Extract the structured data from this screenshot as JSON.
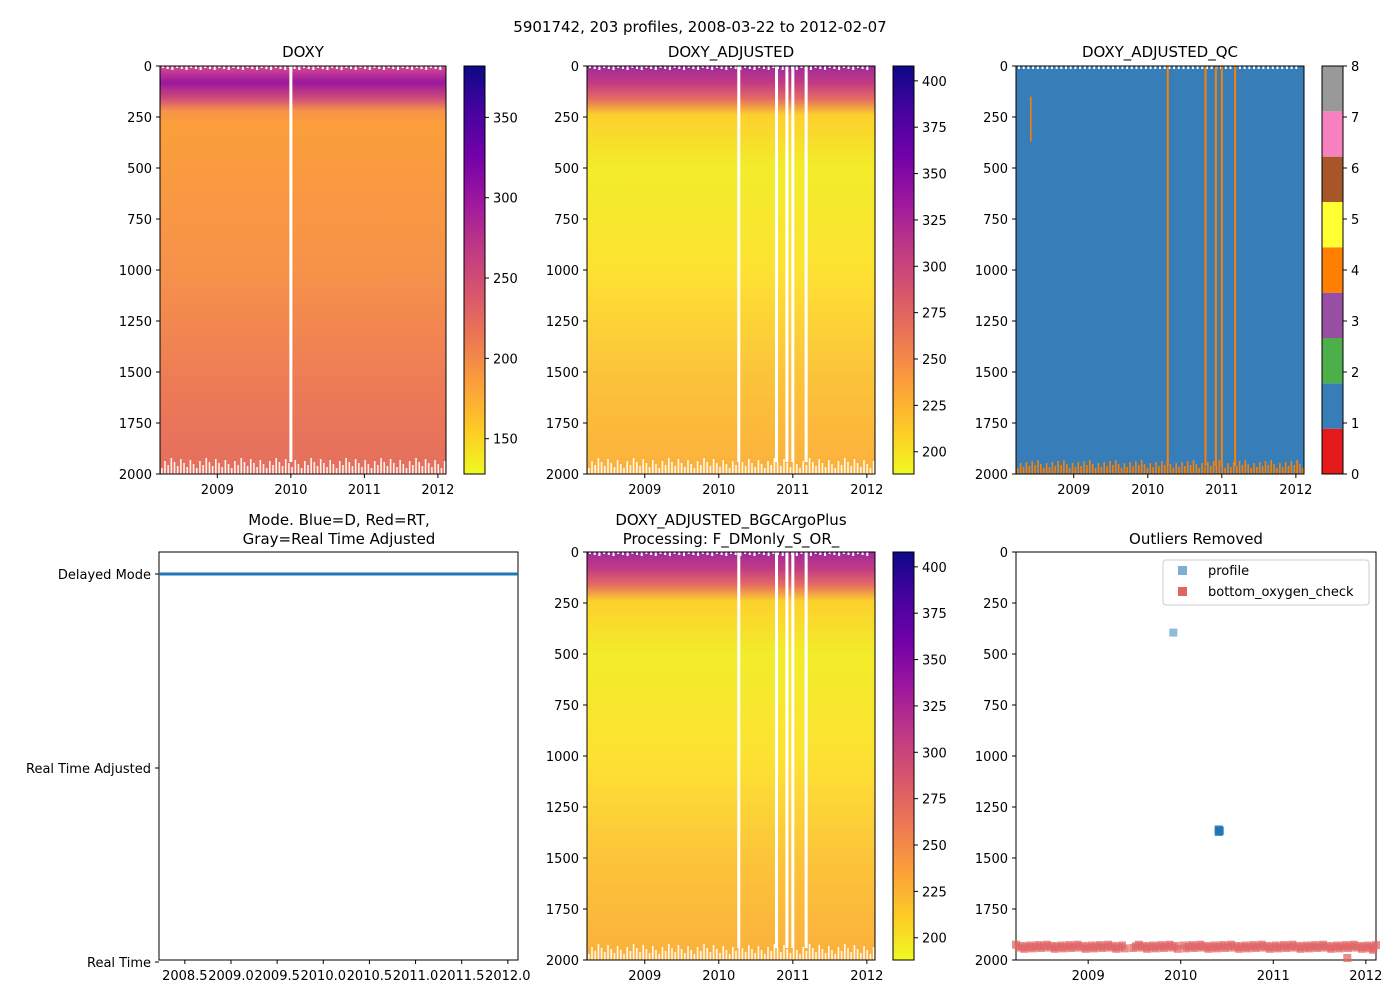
{
  "suptitle": "5901742, 203 profiles, 2008-03-22 to 2012-02-07",
  "colors": {
    "plasma": [
      "#f0f921",
      "#fdca26",
      "#fb9f3a",
      "#ed7953",
      "#d8576b",
      "#bd3786",
      "#9c179e",
      "#7201a8",
      "#46039f",
      "#0d0887"
    ],
    "qc": [
      "#e41a1c",
      "#377eb8",
      "#4daf4a",
      "#984ea3",
      "#ff7f00",
      "#ffff33",
      "#a65628",
      "#f781bf",
      "#999999"
    ],
    "mode_line": "#1f77b4",
    "profile_marker": "#7bafd4",
    "profile_cluster": "#1f77b4",
    "bottom_marker": "#e06666",
    "axis": "#000000"
  },
  "chart_data": [
    {
      "id": "doxy",
      "type": "heatmap",
      "title": "DOXY",
      "x_ticks": [
        "2009",
        "2010",
        "2011",
        "2012"
      ],
      "x_tick_values": [
        2009,
        2010,
        2011,
        2012
      ],
      "xlim": [
        2008.22,
        2012.11
      ],
      "y_ticks": [
        "0",
        "250",
        "500",
        "750",
        "1000",
        "1250",
        "1500",
        "1750",
        "2000"
      ],
      "y_tick_values": [
        0,
        250,
        500,
        750,
        1000,
        1250,
        1500,
        1750,
        2000
      ],
      "ylim": [
        2000,
        0
      ],
      "colorbar": {
        "ticks": [
          "150",
          "200",
          "250",
          "300",
          "350"
        ],
        "tick_values": [
          150,
          200,
          250,
          300,
          350
        ],
        "range": [
          128,
          382
        ]
      },
      "data_gaps_x": [
        2010.0
      ],
      "depth_profile": [
        {
          "depth": 0,
          "value": 290
        },
        {
          "depth": 150,
          "value": 265
        },
        {
          "depth": 250,
          "value": 185
        },
        {
          "depth": 1000,
          "value": 205
        },
        {
          "depth": 2000,
          "value": 230
        }
      ]
    },
    {
      "id": "doxy-adjusted",
      "type": "heatmap",
      "title": "DOXY_ADJUSTED",
      "x_ticks": [
        "2009",
        "2010",
        "2011",
        "2012"
      ],
      "x_tick_values": [
        2009,
        2010,
        2011,
        2012
      ],
      "xlim": [
        2008.22,
        2012.11
      ],
      "y_ticks": [
        "0",
        "250",
        "500",
        "750",
        "1000",
        "1250",
        "1500",
        "1750",
        "2000"
      ],
      "y_tick_values": [
        0,
        250,
        500,
        750,
        1000,
        1250,
        1500,
        1750,
        2000
      ],
      "ylim": [
        2000,
        0
      ],
      "colorbar": {
        "ticks": [
          "200",
          "225",
          "250",
          "275",
          "300",
          "325",
          "350",
          "375",
          "400"
        ],
        "tick_values": [
          200,
          225,
          250,
          275,
          300,
          325,
          350,
          375,
          400
        ],
        "range": [
          188,
          408
        ]
      },
      "data_gaps_x": [
        2010.27,
        2010.78,
        2010.92,
        2011.0,
        2011.18
      ],
      "depth_profile": [
        {
          "depth": 0,
          "value": 320
        },
        {
          "depth": 150,
          "value": 290
        },
        {
          "depth": 250,
          "value": 215
        },
        {
          "depth": 500,
          "value": 200
        },
        {
          "depth": 1000,
          "value": 212
        },
        {
          "depth": 2000,
          "value": 232
        }
      ]
    },
    {
      "id": "doxy-adjusted-qc",
      "type": "heatmap",
      "title": "DOXY_ADJUSTED_QC",
      "x_ticks": [
        "2009",
        "2010",
        "2011",
        "2012"
      ],
      "x_tick_values": [
        2009,
        2010,
        2011,
        2012
      ],
      "xlim": [
        2008.22,
        2012.11
      ],
      "y_ticks": [
        "0",
        "250",
        "500",
        "750",
        "1000",
        "1250",
        "1500",
        "1750",
        "2000"
      ],
      "y_tick_values": [
        0,
        250,
        500,
        750,
        1000,
        1250,
        1500,
        1750,
        2000
      ],
      "ylim": [
        2000,
        0
      ],
      "colorbar": {
        "ticks": [
          "0",
          "1",
          "2",
          "3",
          "4",
          "5",
          "6",
          "7",
          "8"
        ],
        "tick_values": [
          0,
          1,
          2,
          3,
          4,
          5,
          6,
          7,
          8
        ],
        "range": [
          0,
          8
        ]
      },
      "dominant_flag": 1,
      "flag4_profiles_x": [
        2010.27,
        2010.78,
        2010.92,
        2011.0,
        2011.18
      ]
    },
    {
      "id": "mode",
      "type": "line",
      "title": "Mode. Blue=D, Red=RT,\nGray=Real Time Adjusted",
      "x_ticks": [
        "2008.5",
        "2009.0",
        "2009.5",
        "2010.0",
        "2010.5",
        "2011.0",
        "2011.5",
        "2012.0"
      ],
      "x_tick_values": [
        2008.5,
        2009.0,
        2009.5,
        2010.0,
        2010.5,
        2011.0,
        2011.5,
        2012.0
      ],
      "xlim": [
        2008.22,
        2012.11
      ],
      "y_ticks": [
        "Delayed Mode",
        "Real Time Adjusted",
        "Real Time"
      ],
      "series": [
        {
          "name": "D",
          "x": [
            2008.22,
            2012.11
          ],
          "y": [
            "Delayed Mode",
            "Delayed Mode"
          ]
        }
      ]
    },
    {
      "id": "doxy-adjusted-bgc",
      "type": "heatmap",
      "title": "DOXY_ADJUSTED_BGCArgoPlus\nProcessing: F_DMonly_S_OR_",
      "x_ticks": [
        "2009",
        "2010",
        "2011",
        "2012"
      ],
      "x_tick_values": [
        2009,
        2010,
        2011,
        2012
      ],
      "xlim": [
        2008.22,
        2012.11
      ],
      "y_ticks": [
        "0",
        "250",
        "500",
        "750",
        "1000",
        "1250",
        "1500",
        "1750",
        "2000"
      ],
      "y_tick_values": [
        0,
        250,
        500,
        750,
        1000,
        1250,
        1500,
        1750,
        2000
      ],
      "ylim": [
        2000,
        0
      ],
      "colorbar": {
        "ticks": [
          "200",
          "225",
          "250",
          "275",
          "300",
          "325",
          "350",
          "375",
          "400"
        ],
        "tick_values": [
          200,
          225,
          250,
          275,
          300,
          325,
          350,
          375,
          400
        ],
        "range": [
          188,
          408
        ]
      },
      "data_gaps_x": [
        2010.27,
        2010.78,
        2010.92,
        2011.0,
        2011.18
      ],
      "depth_profile": [
        {
          "depth": 0,
          "value": 320
        },
        {
          "depth": 150,
          "value": 290
        },
        {
          "depth": 250,
          "value": 215
        },
        {
          "depth": 500,
          "value": 200
        },
        {
          "depth": 1000,
          "value": 212
        },
        {
          "depth": 2000,
          "value": 232
        }
      ]
    },
    {
      "id": "outliers",
      "type": "scatter",
      "title": "Outliers Removed",
      "x_ticks": [
        "2009",
        "2010",
        "2011",
        "2012"
      ],
      "x_tick_values": [
        2009,
        2010,
        2011,
        2012
      ],
      "xlim": [
        2008.22,
        2012.11
      ],
      "y_ticks": [
        "0",
        "250",
        "500",
        "750",
        "1000",
        "1250",
        "1500",
        "1750",
        "2000"
      ],
      "y_tick_values": [
        0,
        250,
        500,
        750,
        1000,
        1250,
        1500,
        1750,
        2000
      ],
      "ylim": [
        2000,
        0
      ],
      "legend": [
        "profile",
        "bottom_oxygen_check"
      ],
      "legend_position": "top-right",
      "series": [
        {
          "name": "profile",
          "points": [
            {
              "x": 2009.92,
              "y": 395
            },
            {
              "x": 2010.41,
              "y": 1360
            },
            {
              "x": 2010.42,
              "y": 1365
            },
            {
              "x": 2010.41,
              "y": 1372
            },
            {
              "x": 2010.42,
              "y": 1368
            }
          ]
        },
        {
          "name": "bottom_oxygen_check",
          "y_band": [
            1925,
            1945
          ],
          "x_range": [
            2008.22,
            2012.11
          ],
          "x_gaps": [
            [
              2009.42,
              2009.48
            ],
            [
              2009.98,
              2010.02
            ]
          ],
          "extra_points": [
            {
              "x": 2011.8,
              "y": 1990
            },
            {
              "x": 2012.08,
              "y": 1950
            }
          ]
        }
      ]
    }
  ]
}
